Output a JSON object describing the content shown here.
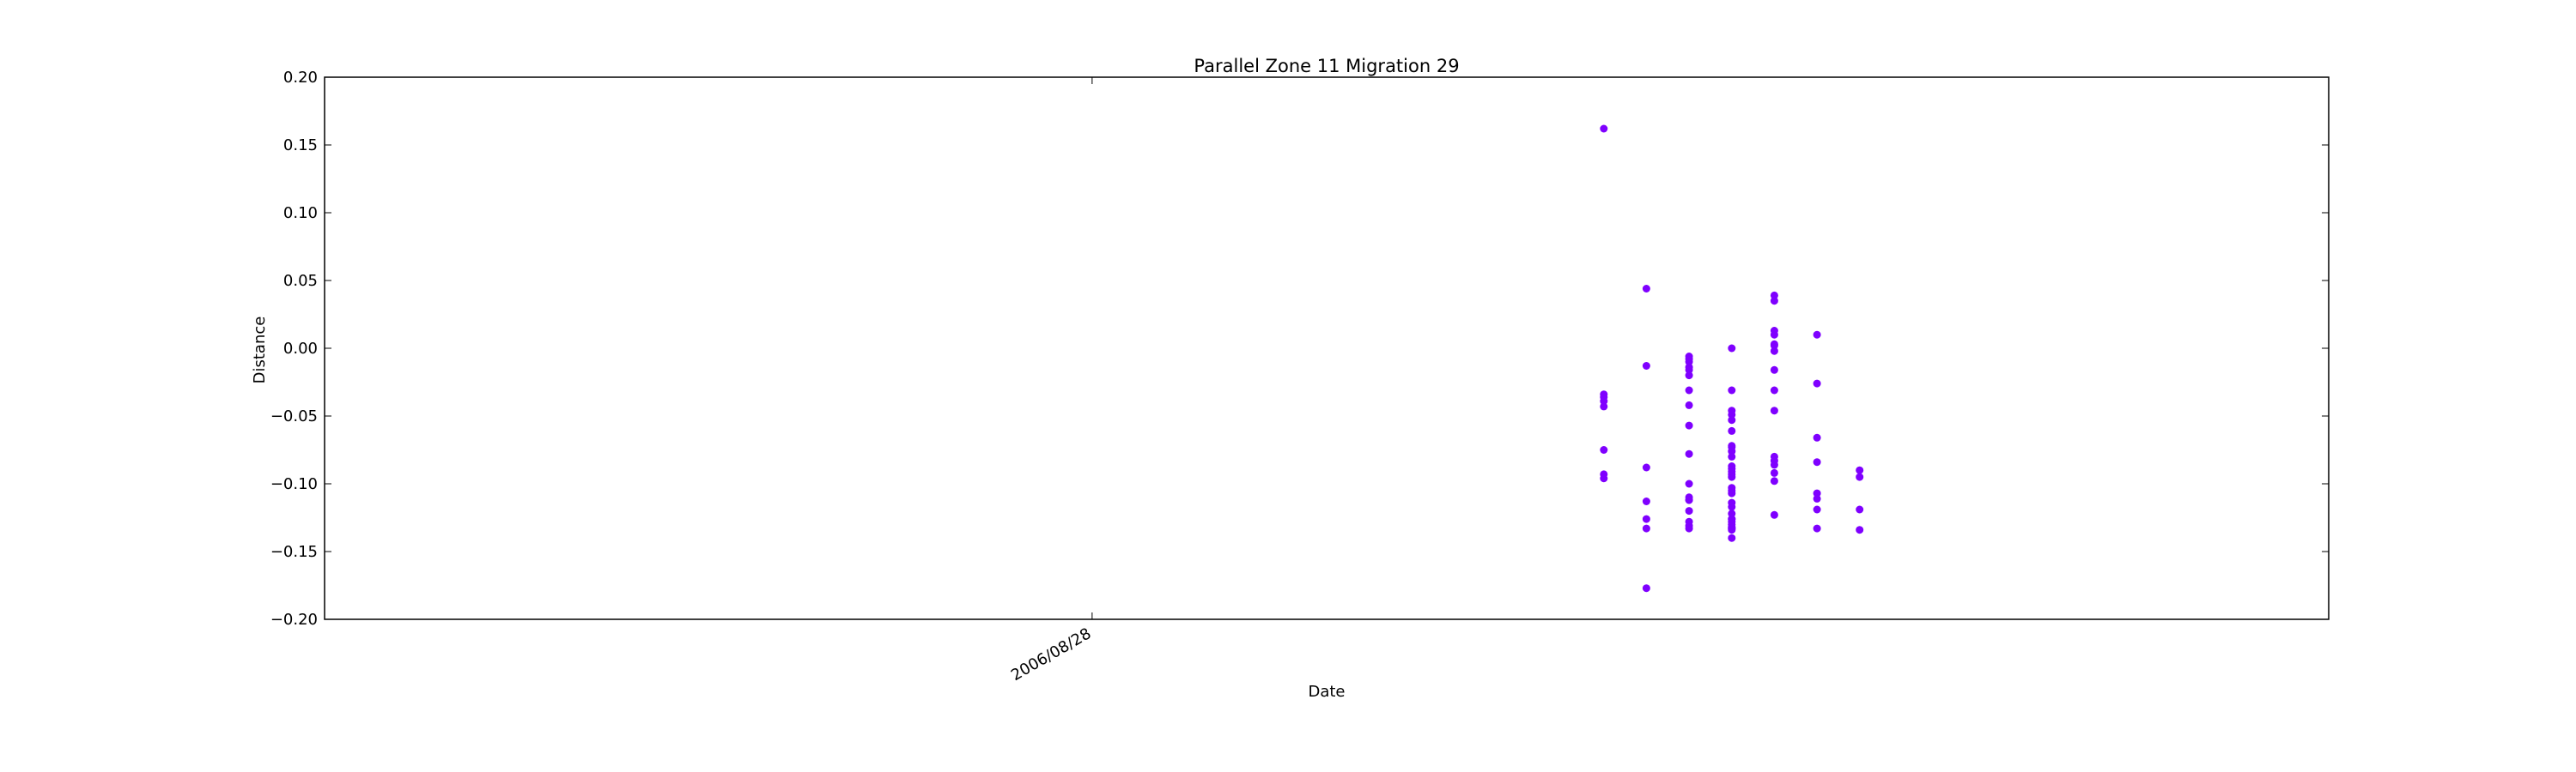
{
  "chart_data": {
    "type": "scatter",
    "title": "Parallel Zone 11 Migration 29",
    "xlabel": "Date",
    "ylabel": "Distance",
    "ylim": [
      -0.2,
      0.2
    ],
    "yticks": [
      -0.2,
      -0.15,
      -0.1,
      -0.05,
      0.0,
      0.05,
      0.1,
      0.15,
      0.2
    ],
    "ytick_labels": [
      "−0.20",
      "−0.15",
      "−0.10",
      "−0.05",
      "0.00",
      "0.05",
      "0.10",
      "0.15",
      "0.20"
    ],
    "xlim": [
      "2006/08/10",
      "2006/09/26"
    ],
    "xticks": [
      "2006/08/28"
    ],
    "xtick_labels": [
      "2006/08/28"
    ],
    "grid": false,
    "marker_color": "#7f00ff",
    "points": [
      {
        "x": "2006/09/09",
        "y": 0.162
      },
      {
        "x": "2006/09/09",
        "y": -0.093
      },
      {
        "x": "2006/09/09",
        "y": -0.096
      },
      {
        "x": "2006/09/09",
        "y": -0.075
      },
      {
        "x": "2006/09/09",
        "y": -0.043
      },
      {
        "x": "2006/09/09",
        "y": -0.034
      },
      {
        "x": "2006/09/09",
        "y": -0.039
      },
      {
        "x": "2006/09/09",
        "y": -0.036
      },
      {
        "x": "2006/09/10",
        "y": -0.013
      },
      {
        "x": "2006/09/10",
        "y": -0.088
      },
      {
        "x": "2006/09/10",
        "y": -0.113
      },
      {
        "x": "2006/09/10",
        "y": -0.126
      },
      {
        "x": "2006/09/10",
        "y": 0.044
      },
      {
        "x": "2006/09/10",
        "y": -0.177
      },
      {
        "x": "2006/09/10",
        "y": -0.133
      },
      {
        "x": "2006/09/11",
        "y": -0.11
      },
      {
        "x": "2006/09/11",
        "y": -0.112
      },
      {
        "x": "2006/09/11",
        "y": -0.12
      },
      {
        "x": "2006/09/11",
        "y": -0.057
      },
      {
        "x": "2006/09/11",
        "y": -0.042
      },
      {
        "x": "2006/09/11",
        "y": -0.02
      },
      {
        "x": "2006/09/11",
        "y": -0.014
      },
      {
        "x": "2006/09/11",
        "y": -0.008
      },
      {
        "x": "2006/09/11",
        "y": -0.133
      },
      {
        "x": "2006/09/11",
        "y": -0.112
      },
      {
        "x": "2006/09/11",
        "y": -0.078
      },
      {
        "x": "2006/09/11",
        "y": -0.031
      },
      {
        "x": "2006/09/11",
        "y": -0.016
      },
      {
        "x": "2006/09/11",
        "y": -0.01
      },
      {
        "x": "2006/09/11",
        "y": -0.006
      },
      {
        "x": "2006/09/11",
        "y": -0.1
      },
      {
        "x": "2006/09/11",
        "y": -0.131
      },
      {
        "x": "2006/09/11",
        "y": -0.128
      },
      {
        "x": "2006/09/12",
        "y": -0.093
      },
      {
        "x": "2006/09/12",
        "y": -0.105
      },
      {
        "x": "2006/09/12",
        "y": -0.107
      },
      {
        "x": "2006/09/12",
        "y": -0.073
      },
      {
        "x": "2006/09/12",
        "y": -0.122
      },
      {
        "x": "2006/09/12",
        "y": -0.132
      },
      {
        "x": "2006/09/12",
        "y": -0.134
      },
      {
        "x": "2006/09/12",
        "y": -0.13
      },
      {
        "x": "2006/09/12",
        "y": -0.126
      },
      {
        "x": "2006/09/12",
        "y": -0.049
      },
      {
        "x": "2006/09/12",
        "y": -0.053
      },
      {
        "x": "2006/09/12",
        "y": -0.087
      },
      {
        "x": "2006/09/12",
        "y": -0.095
      },
      {
        "x": "2006/09/12",
        "y": -0.103
      },
      {
        "x": "2006/09/12",
        "y": -0.128
      },
      {
        "x": "2006/09/12",
        "y": -0.072
      },
      {
        "x": "2006/09/12",
        "y": -0.076
      },
      {
        "x": "2006/09/12",
        "y": -0.133
      },
      {
        "x": "2006/09/12",
        "y": -0.031
      },
      {
        "x": "2006/09/12",
        "y": 0.0
      },
      {
        "x": "2006/09/12",
        "y": -0.091
      },
      {
        "x": "2006/09/12",
        "y": -0.089
      },
      {
        "x": "2006/09/12",
        "y": -0.117
      },
      {
        "x": "2006/09/12",
        "y": -0.14
      },
      {
        "x": "2006/09/12",
        "y": -0.133
      },
      {
        "x": "2006/09/12",
        "y": -0.126
      },
      {
        "x": "2006/09/12",
        "y": -0.08
      },
      {
        "x": "2006/09/12",
        "y": -0.114
      },
      {
        "x": "2006/09/12",
        "y": -0.061
      },
      {
        "x": "2006/09/12",
        "y": -0.046
      },
      {
        "x": "2006/09/13",
        "y": 0.039
      },
      {
        "x": "2006/09/13",
        "y": 0.035
      },
      {
        "x": "2006/09/13",
        "y": 0.013
      },
      {
        "x": "2006/09/13",
        "y": 0.01
      },
      {
        "x": "2006/09/13",
        "y": 0.003
      },
      {
        "x": "2006/09/13",
        "y": -0.016
      },
      {
        "x": "2006/09/13",
        "y": -0.086
      },
      {
        "x": "2006/09/13",
        "y": -0.123
      },
      {
        "x": "2006/09/13",
        "y": -0.08
      },
      {
        "x": "2006/09/13",
        "y": -0.031
      },
      {
        "x": "2006/09/13",
        "y": 0.002
      },
      {
        "x": "2006/09/13",
        "y": -0.002
      },
      {
        "x": "2006/09/13",
        "y": -0.092
      },
      {
        "x": "2006/09/13",
        "y": -0.098
      },
      {
        "x": "2006/09/13",
        "y": -0.046
      },
      {
        "x": "2006/09/13",
        "y": -0.083
      },
      {
        "x": "2006/09/14",
        "y": -0.133
      },
      {
        "x": "2006/09/14",
        "y": -0.066
      },
      {
        "x": "2006/09/14",
        "y": -0.107
      },
      {
        "x": "2006/09/14",
        "y": -0.111
      },
      {
        "x": "2006/09/14",
        "y": -0.119
      },
      {
        "x": "2006/09/14",
        "y": -0.084
      },
      {
        "x": "2006/09/14",
        "y": 0.01
      },
      {
        "x": "2006/09/14",
        "y": -0.026
      },
      {
        "x": "2006/09/15",
        "y": -0.095
      },
      {
        "x": "2006/09/15",
        "y": -0.134
      },
      {
        "x": "2006/09/15",
        "y": -0.119
      },
      {
        "x": "2006/09/15",
        "y": -0.09
      }
    ]
  }
}
